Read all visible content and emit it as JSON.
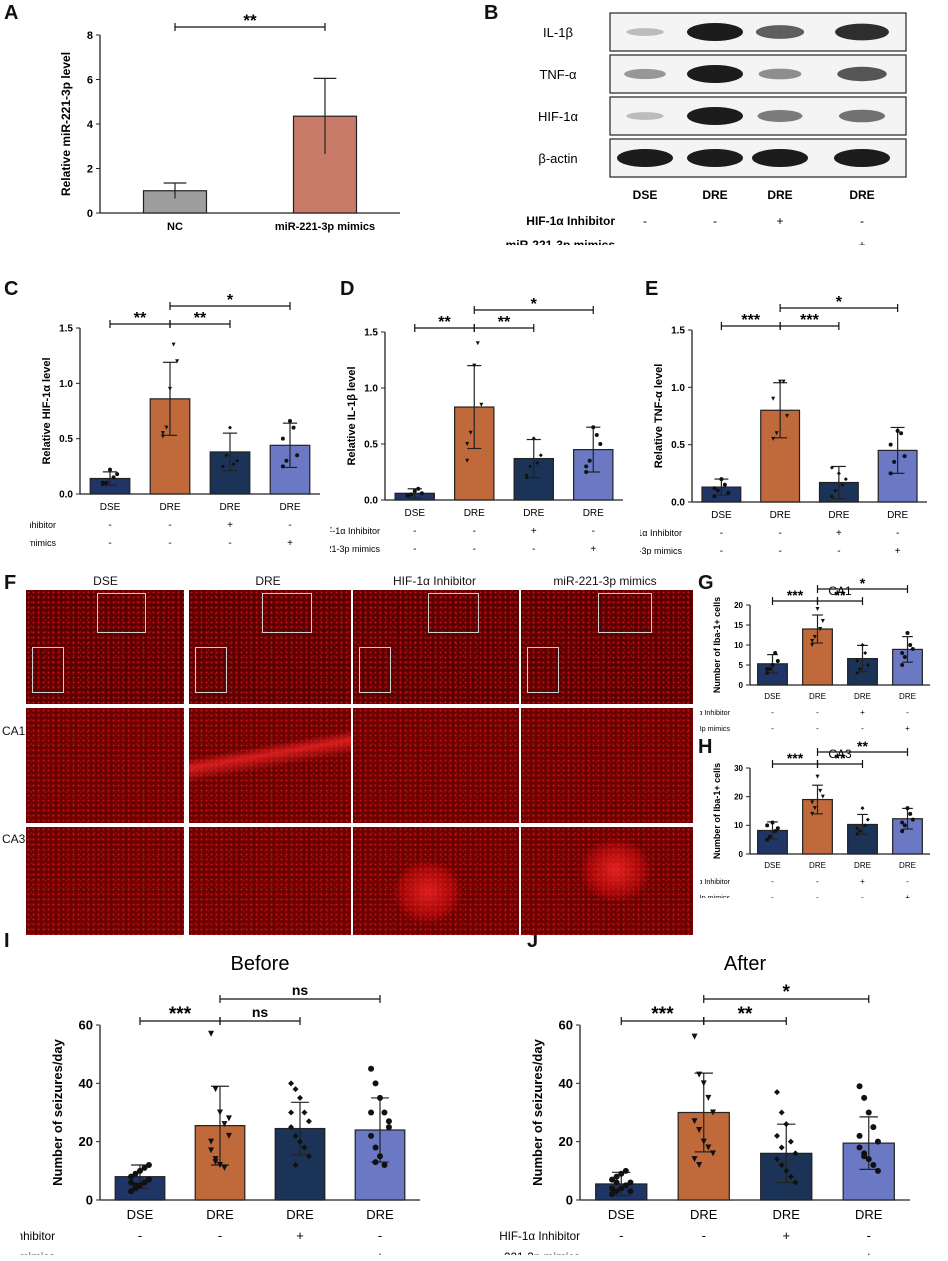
{
  "panel_labels": [
    "A",
    "B",
    "C",
    "D",
    "E",
    "F",
    "G",
    "H",
    "I",
    "J"
  ],
  "colors": {
    "nc": "#9e9e9e",
    "mimics_a": "#c97b6a",
    "dse": "#1f3566",
    "dre": "#c0693a",
    "inhibitor": "#1c3358",
    "mimics": "#6b78c4",
    "fluor": "#c81010",
    "blot_band": "#151515"
  },
  "condition_rows": {
    "inhibitor_label": "HIF-1α Inhibitor",
    "mimics_label": "miR-221-3p mimics",
    "inhibitor_signs": [
      "-",
      "-",
      "+",
      "-"
    ],
    "mimics_signs": [
      "-",
      "-",
      "-",
      "+"
    ]
  },
  "western_blot": {
    "bands": [
      "IL-1β",
      "TNF-α",
      "HIF-1α",
      "β-actin"
    ],
    "lanes": [
      "DSE",
      "DRE",
      "DRE",
      "DRE"
    ],
    "intensity": [
      [
        0.15,
        1.0,
        0.65,
        0.9
      ],
      [
        0.35,
        1.0,
        0.4,
        0.7
      ],
      [
        0.15,
        1.0,
        0.5,
        0.55
      ],
      [
        1.0,
        1.0,
        1.0,
        1.0
      ]
    ]
  },
  "fluorescence": {
    "columns": [
      "DSE",
      "DRE",
      "HIF-1α Inhibitor",
      "miR-221-3p mimics"
    ],
    "rows": [
      "CA1",
      "CA3"
    ],
    "focus_spot": [
      0,
      0,
      0.75,
      0.8
    ]
  },
  "chart_data": [
    {
      "id": "A",
      "type": "bar",
      "categories": [
        "NC",
        "miR-221-3p mimics"
      ],
      "values": [
        1.0,
        4.35
      ],
      "errors": [
        0.35,
        1.7
      ],
      "ylabel": "Relative miR-221-3p level",
      "ylim": [
        0,
        8
      ],
      "yticks": [
        0,
        2,
        4,
        6,
        8
      ],
      "annotations": [
        {
          "from": 0,
          "to": 1,
          "text": "**"
        }
      ]
    },
    {
      "id": "C",
      "type": "bar",
      "categories": [
        "DSE",
        "DRE",
        "DRE",
        "DRE"
      ],
      "values": [
        0.14,
        0.86,
        0.38,
        0.44
      ],
      "errors": [
        0.06,
        0.33,
        0.17,
        0.2
      ],
      "points": [
        [
          0.1,
          0.1,
          0.22,
          0.15,
          0.18,
          0.09
        ],
        [
          0.52,
          0.6,
          0.95,
          1.35,
          1.2,
          0.55
        ],
        [
          0.25,
          0.35,
          0.6,
          0.27,
          0.3,
          0.25
        ],
        [
          0.25,
          0.3,
          0.66,
          0.6,
          0.35,
          0.5
        ]
      ],
      "ylabel": "Relative HIF-1α level",
      "ylim": [
        0,
        1.5
      ],
      "yticks": [
        "0.0",
        "0.5",
        "1.0",
        "1.5"
      ],
      "annotations": [
        {
          "from": 0,
          "to": 1,
          "text": "**",
          "level": 0
        },
        {
          "from": 1,
          "to": 2,
          "text": "**",
          "level": 0
        },
        {
          "from": 1,
          "to": 3,
          "text": "*",
          "level": 1
        }
      ]
    },
    {
      "id": "D",
      "type": "bar",
      "categories": [
        "DSE",
        "DRE",
        "DRE",
        "DRE"
      ],
      "values": [
        0.06,
        0.83,
        0.37,
        0.45
      ],
      "errors": [
        0.04,
        0.37,
        0.17,
        0.2
      ],
      "points": [
        [
          0.04,
          0.05,
          0.08,
          0.1,
          0.06,
          0.04
        ],
        [
          0.35,
          0.6,
          1.2,
          1.4,
          0.85,
          0.5
        ],
        [
          0.2,
          0.3,
          0.55,
          0.33,
          0.4,
          0.22
        ],
        [
          0.25,
          0.35,
          0.65,
          0.58,
          0.5,
          0.3
        ]
      ],
      "ylabel": "Relative IL-1β level",
      "ylim": [
        0,
        1.5
      ],
      "yticks": [
        "0.0",
        "0.5",
        "1.0",
        "1.5"
      ],
      "annotations": [
        {
          "from": 0,
          "to": 1,
          "text": "**",
          "level": 0
        },
        {
          "from": 1,
          "to": 2,
          "text": "**",
          "level": 0
        },
        {
          "from": 1,
          "to": 3,
          "text": "*",
          "level": 1
        }
      ]
    },
    {
      "id": "E",
      "type": "bar",
      "categories": [
        "DSE",
        "DRE",
        "DRE",
        "DRE"
      ],
      "values": [
        0.13,
        0.8,
        0.17,
        0.45
      ],
      "errors": [
        0.07,
        0.24,
        0.14,
        0.2
      ],
      "points": [
        [
          0.05,
          0.1,
          0.2,
          0.15,
          0.08,
          0.12
        ],
        [
          0.55,
          0.6,
          1.05,
          1.05,
          0.75,
          0.9
        ],
        [
          0.05,
          0.1,
          0.25,
          0.15,
          0.2,
          0.3
        ],
        [
          0.25,
          0.35,
          0.62,
          0.6,
          0.4,
          0.5
        ]
      ],
      "ylabel": "Relative TNF-α level",
      "ylim": [
        0,
        1.5
      ],
      "yticks": [
        "0.0",
        "0.5",
        "1.0",
        "1.5"
      ],
      "annotations": [
        {
          "from": 0,
          "to": 1,
          "text": "***",
          "level": 0
        },
        {
          "from": 1,
          "to": 2,
          "text": "***",
          "level": 0
        },
        {
          "from": 1,
          "to": 3,
          "text": "*",
          "level": 1
        }
      ]
    },
    {
      "id": "G",
      "type": "bar",
      "title": "CA1",
      "categories": [
        "DSE",
        "DRE",
        "DRE",
        "DRE"
      ],
      "values": [
        5.3,
        14.0,
        6.6,
        8.9
      ],
      "errors": [
        2.3,
        3.5,
        3.3,
        3.2
      ],
      "points": [
        [
          3,
          4,
          5,
          8,
          6,
          4
        ],
        [
          10,
          12,
          19,
          14,
          16,
          11
        ],
        [
          3,
          4,
          10,
          8,
          5,
          6
        ],
        [
          5,
          7,
          13,
          10,
          9,
          8
        ]
      ],
      "ylabel": "Number of Iba-1+ cells",
      "ylim": [
        0,
        20
      ],
      "yticks": [
        0,
        5,
        10,
        15,
        20
      ],
      "annotations": [
        {
          "from": 0,
          "to": 1,
          "text": "***",
          "level": 0
        },
        {
          "from": 1,
          "to": 2,
          "text": "**",
          "level": 0
        },
        {
          "from": 1,
          "to": 3,
          "text": "*",
          "level": 1
        }
      ]
    },
    {
      "id": "H",
      "type": "bar",
      "title": "CA3",
      "categories": [
        "DSE",
        "DRE",
        "DRE",
        "DRE"
      ],
      "values": [
        8.2,
        19.0,
        10.3,
        12.3
      ],
      "errors": [
        3.0,
        5.0,
        3.5,
        3.6
      ],
      "points": [
        [
          5,
          6,
          11,
          8,
          9,
          10
        ],
        [
          14,
          16,
          27,
          22,
          20,
          18
        ],
        [
          7,
          8,
          16,
          10,
          12,
          9
        ],
        [
          8,
          10,
          16,
          14,
          12,
          11
        ]
      ],
      "ylabel": "Number of Iba-1+ cells",
      "ylim": [
        0,
        30
      ],
      "yticks": [
        0,
        10,
        20,
        30
      ],
      "annotations": [
        {
          "from": 0,
          "to": 1,
          "text": "***",
          "level": 0
        },
        {
          "from": 1,
          "to": 2,
          "text": "**",
          "level": 0
        },
        {
          "from": 1,
          "to": 3,
          "text": "**",
          "level": 1
        }
      ]
    },
    {
      "id": "I",
      "type": "bar",
      "title": "Before",
      "categories": [
        "DSE",
        "DRE",
        "DRE",
        "DRE"
      ],
      "values": [
        8,
        25.5,
        24.5,
        24
      ],
      "errors": [
        4,
        13.5,
        9,
        11
      ],
      "points": [
        [
          3,
          4,
          5,
          6,
          7,
          8,
          9,
          10,
          11,
          12,
          6,
          5
        ],
        [
          57,
          38,
          30,
          26,
          22,
          17,
          14,
          12,
          11,
          28,
          20,
          13
        ],
        [
          40,
          38,
          35,
          30,
          27,
          25,
          22,
          20,
          18,
          15,
          30,
          12
        ],
        [
          45,
          40,
          35,
          30,
          27,
          22,
          18,
          15,
          12,
          25,
          30,
          13
        ]
      ],
      "ylabel": "Number of seizures/day",
      "ylim": [
        0,
        60
      ],
      "yticks": [
        0,
        20,
        40,
        60
      ],
      "annotations": [
        {
          "from": 0,
          "to": 1,
          "text": "***",
          "level": 0
        },
        {
          "from": 1,
          "to": 2,
          "text": "ns",
          "level": 0
        },
        {
          "from": 1,
          "to": 3,
          "text": "ns",
          "level": 1
        }
      ]
    },
    {
      "id": "J",
      "type": "bar",
      "title": "After",
      "categories": [
        "DSE",
        "DRE",
        "DRE",
        "DRE"
      ],
      "values": [
        5.5,
        30,
        16,
        19.5
      ],
      "errors": [
        4,
        13.5,
        10,
        9
      ],
      "points": [
        [
          2,
          3,
          4,
          5,
          6,
          7,
          8,
          9,
          10,
          3,
          4,
          6
        ],
        [
          56,
          43,
          40,
          35,
          30,
          27,
          24,
          20,
          18,
          16,
          14,
          12
        ],
        [
          37,
          30,
          26,
          20,
          16,
          14,
          12,
          10,
          8,
          6,
          22,
          18
        ],
        [
          39,
          35,
          30,
          25,
          20,
          18,
          16,
          14,
          12,
          10,
          22,
          15
        ]
      ],
      "ylabel": "Number of seizures/day",
      "ylim": [
        0,
        60
      ],
      "yticks": [
        0,
        20,
        40,
        60
      ],
      "annotations": [
        {
          "from": 0,
          "to": 1,
          "text": "***",
          "level": 0
        },
        {
          "from": 1,
          "to": 2,
          "text": "**",
          "level": 0
        },
        {
          "from": 1,
          "to": 3,
          "text": "*",
          "level": 1
        }
      ]
    }
  ]
}
